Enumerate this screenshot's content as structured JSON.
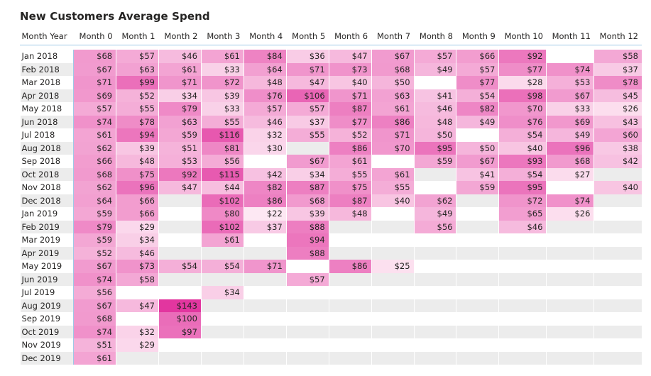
{
  "title": "New Customers Average Spend",
  "colors": {
    "heat_low": "#fde8f3",
    "heat_high": "#e2369f",
    "band": "#ececec",
    "rule": "#9ec9e6"
  },
  "chart_data": {
    "type": "heatmap",
    "title": "New Customers Average Spend",
    "row_header": "Month Year",
    "columns": [
      "Month 0",
      "Month 1",
      "Month 2",
      "Month 3",
      "Month 4",
      "Month 5",
      "Month 6",
      "Month 7",
      "Month 8",
      "Month 9",
      "Month 10",
      "Month 11",
      "Month 12"
    ],
    "rows": [
      "Jan 2018",
      "Feb 2018",
      "Mar 2018",
      "Apr 2018",
      "May 2018",
      "Jun 2018",
      "Jul 2018",
      "Aug 2018",
      "Sep 2018",
      "Oct 2018",
      "Nov 2018",
      "Dec 2018",
      "Jan 2019",
      "Feb 2019",
      "Mar 2019",
      "Apr 2019",
      "May 2019",
      "Jun 2019",
      "Jul 2019",
      "Aug 2019",
      "Sep 2019",
      "Oct 2019",
      "Nov 2019",
      "Dec 2019"
    ],
    "values": [
      [
        68,
        57,
        46,
        61,
        84,
        36,
        47,
        67,
        57,
        66,
        92,
        null,
        58
      ],
      [
        67,
        63,
        61,
        33,
        64,
        71,
        73,
        68,
        49,
        57,
        77,
        74,
        37
      ],
      [
        71,
        99,
        71,
        72,
        48,
        47,
        40,
        50,
        null,
        77,
        28,
        53,
        78
      ],
      [
        69,
        52,
        34,
        39,
        76,
        106,
        71,
        63,
        41,
        54,
        98,
        67,
        45
      ],
      [
        57,
        55,
        79,
        33,
        57,
        57,
        87,
        61,
        46,
        82,
        70,
        33,
        26
      ],
      [
        74,
        78,
        63,
        55,
        46,
        37,
        77,
        86,
        48,
        49,
        76,
        69,
        43
      ],
      [
        61,
        94,
        59,
        116,
        32,
        55,
        52,
        71,
        50,
        null,
        54,
        49,
        60
      ],
      [
        62,
        39,
        51,
        81,
        30,
        null,
        86,
        70,
        95,
        50,
        40,
        96,
        38
      ],
      [
        66,
        48,
        53,
        56,
        null,
        67,
        61,
        null,
        59,
        67,
        93,
        68,
        42
      ],
      [
        68,
        75,
        92,
        115,
        42,
        34,
        55,
        61,
        null,
        41,
        54,
        27,
        null
      ],
      [
        62,
        96,
        47,
        44,
        82,
        87,
        75,
        55,
        null,
        59,
        95,
        null,
        40
      ],
      [
        64,
        66,
        null,
        102,
        86,
        68,
        87,
        40,
        62,
        null,
        72,
        74,
        null
      ],
      [
        59,
        66,
        null,
        80,
        22,
        39,
        48,
        null,
        49,
        null,
        65,
        26,
        null
      ],
      [
        79,
        29,
        null,
        102,
        37,
        88,
        null,
        null,
        56,
        null,
        46,
        null,
        null
      ],
      [
        59,
        34,
        null,
        61,
        null,
        94,
        null,
        null,
        null,
        null,
        null,
        null,
        null
      ],
      [
        52,
        46,
        null,
        null,
        null,
        88,
        null,
        null,
        null,
        null,
        null,
        null,
        null
      ],
      [
        67,
        73,
        54,
        54,
        71,
        null,
        86,
        25,
        null,
        null,
        null,
        null,
        null
      ],
      [
        74,
        58,
        null,
        null,
        null,
        57,
        null,
        null,
        null,
        null,
        null,
        null,
        null
      ],
      [
        56,
        null,
        null,
        34,
        null,
        null,
        null,
        null,
        null,
        null,
        null,
        null,
        null
      ],
      [
        67,
        47,
        143,
        null,
        null,
        null,
        null,
        null,
        null,
        null,
        null,
        null,
        null
      ],
      [
        68,
        null,
        100,
        null,
        null,
        null,
        null,
        null,
        null,
        null,
        null,
        null,
        null
      ],
      [
        74,
        32,
        97,
        null,
        null,
        null,
        null,
        null,
        null,
        null,
        null,
        null,
        null
      ],
      [
        51,
        29,
        null,
        null,
        null,
        null,
        null,
        null,
        null,
        null,
        null,
        null,
        null
      ],
      [
        61,
        null,
        null,
        null,
        null,
        null,
        null,
        null,
        null,
        null,
        null,
        null,
        null
      ]
    ],
    "value_prefix": "$",
    "color_scale": {
      "min_value": 22,
      "max_value": 143
    }
  }
}
